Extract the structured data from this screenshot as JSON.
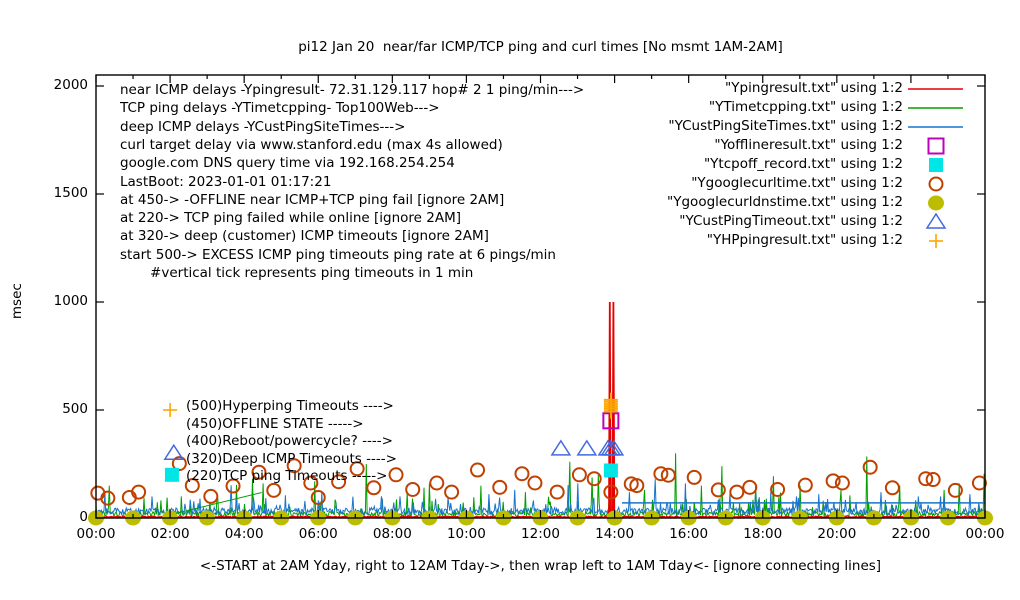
{
  "title": "pi12 Jan 20  near/far ICMP/TCP ping and curl times [No msmt 1AM-2AM]",
  "ylabel": "msec",
  "xlabel_note": "<-START at 2AM Yday, right to 12AM Tday->, then wrap left to 1AM Tday<- [ignore connecting lines]",
  "annotations_topleft": [
    "near ICMP delays -Ypingresult- 72.31.129.117 hop# 2 1 ping/min--->",
    "TCP ping delays -YTimetcpping- Top100Web--->",
    "deep ICMP delays -YCustPingSiteTimes--->",
    "curl target delay via www.stanford.edu (max 4s allowed)",
    "google.com DNS query time via 192.168.254.254",
    "LastBoot: 2023-01-01 01:17:21",
    "at 450-> -OFFLINE near ICMP+TCP ping fail [ignore 2AM]",
    "at 220-> TCP ping failed while online [ignore 2AM]",
    "at 320-> deep (customer) ICMP timeouts [ignore 2AM]",
    "start 500-> EXCESS ICMP ping timeouts ping rate at 6 pings/min",
    "       #vertical tick represents ping timeouts in 1 min"
  ],
  "annotations_mid": [
    {
      "label": "(500)Hyperping Timeouts ---->",
      "marker": "plus",
      "marker_color": "#ffa500",
      "mx": 2.0,
      "my": 500
    },
    {
      "label": "(450)OFFLINE STATE ----->",
      "marker": null,
      "marker_color": null,
      "mx": null,
      "my": null
    },
    {
      "label": "(400)Reboot/powercycle? ---->",
      "marker": null,
      "marker_color": null,
      "mx": null,
      "my": null
    },
    {
      "label": "(320)Deep ICMP Timeouts ---->",
      "marker": "triangle-open",
      "marker_color": "#4169e1",
      "mx": 2.1,
      "my": 300
    },
    {
      "label": "(220)TCP ping Timeouts ----->",
      "marker": "square-fill",
      "marker_color": "#00e5e5",
      "mx": 2.05,
      "my": 200
    }
  ],
  "legend": [
    {
      "label": "\"Ypingresult.txt\" using 1:2",
      "sample": "line",
      "color": "#e60000"
    },
    {
      "label": "\"YTimetcpping.txt\" using 1:2",
      "sample": "line",
      "color": "#00a000"
    },
    {
      "label": "\"YCustPingSiteTimes.txt\" using 1:2",
      "sample": "line",
      "color": "#1874cd"
    },
    {
      "label": "\"Yofflineresult.txt\" using 1:2",
      "sample": "square-open",
      "color": "#bf00bf"
    },
    {
      "label": "\"Ytcpoff_record.txt\" using 1:2",
      "sample": "square-fill",
      "color": "#00e5e5"
    },
    {
      "label": "\"Ygooglecurltime.txt\" using 1:2",
      "sample": "circle-open",
      "color": "#c04000"
    },
    {
      "label": "\"Ygooglecurldnstime.txt\" using 1:2",
      "sample": "circle-fill",
      "color": "#bdbd00"
    },
    {
      "label": "\"YCustPingTimeout.txt\" using 1:2",
      "sample": "triangle-open",
      "color": "#4169e1"
    },
    {
      "label": "\"YHPpingresult.txt\" using 1:2",
      "sample": "plus",
      "color": "#ffa500"
    }
  ],
  "chart_data": {
    "type": "line",
    "title": "pi12 Jan 20  near/far ICMP/TCP ping and curl times [No msmt 1AM-2AM]",
    "xlabel": "<-START at 2AM Yday, right to 12AM Tday->, then wrap left to 1AM Tday<- [ignore connecting lines]",
    "ylabel": "msec",
    "xlim": [
      0,
      24
    ],
    "ylim": [
      0,
      2000
    ],
    "grid": false,
    "legend_position": "top-right-outside-style",
    "x_ticks": {
      "positions": [
        0,
        2,
        4,
        6,
        8,
        10,
        12,
        14,
        16,
        18,
        20,
        22,
        24
      ],
      "labels": [
        "00:00",
        "02:00",
        "04:00",
        "06:00",
        "08:00",
        "10:00",
        "12:00",
        "14:00",
        "16:00",
        "18:00",
        "20:00",
        "22:00",
        "00:00"
      ]
    },
    "y_ticks": {
      "positions": [
        0,
        500,
        1000,
        1500,
        2000
      ],
      "labels": [
        "0",
        "500",
        "1000",
        "1500",
        "2000"
      ]
    },
    "series": [
      {
        "name": "YTimetcpping.txt",
        "type": "noise-line",
        "color": "#00a000",
        "base": 6,
        "jitter": 24,
        "spike_p": 0.1,
        "spike_amp": 75,
        "rare_p": 0.006,
        "rare_amp": 150,
        "seed": 42,
        "spikes": [
          [
            0.35,
            150
          ],
          [
            1.3,
            95
          ],
          [
            2.3,
            100
          ],
          [
            3.3,
            90
          ],
          [
            4.5,
            160
          ],
          [
            5.9,
            170
          ],
          [
            7.3,
            250
          ],
          [
            8.4,
            120
          ],
          [
            9.0,
            160
          ],
          [
            10.4,
            150
          ],
          [
            11.6,
            120
          ],
          [
            12.8,
            260
          ],
          [
            13.55,
            200
          ],
          [
            14.8,
            130
          ],
          [
            15.65,
            300
          ],
          [
            16.35,
            150
          ],
          [
            16.9,
            240
          ],
          [
            17.8,
            150
          ],
          [
            19.0,
            150
          ],
          [
            20.1,
            130
          ],
          [
            20.8,
            285
          ],
          [
            21.7,
            150
          ],
          [
            22.9,
            130
          ],
          [
            23.3,
            160
          ],
          [
            23.97,
            205
          ]
        ]
      },
      {
        "name": "YCustPingSiteTimes.txt",
        "type": "noise-line",
        "color": "#1874cd",
        "base": 16,
        "jitter": 30,
        "spike_p": 0.1,
        "spike_amp": 55,
        "rare_p": 0.004,
        "rare_amp": 90,
        "seed": 1337,
        "spikes": [
          [
            0.25,
            120
          ],
          [
            1.5,
            100
          ],
          [
            2.8,
            90
          ],
          [
            3.8,
            95
          ],
          [
            5.1,
            105
          ],
          [
            6.1,
            120
          ],
          [
            7.7,
            100
          ],
          [
            8.2,
            100
          ],
          [
            9.5,
            95
          ],
          [
            10.6,
            110
          ],
          [
            11.3,
            130
          ],
          [
            13.0,
            160
          ],
          [
            14.4,
            120
          ],
          [
            15.1,
            180
          ],
          [
            15.9,
            160
          ],
          [
            17.1,
            110
          ],
          [
            17.8,
            120
          ],
          [
            18.9,
            100
          ],
          [
            19.5,
            110
          ],
          [
            21.2,
            120
          ],
          [
            22.2,
            100
          ],
          [
            22.8,
            100
          ],
          [
            23.6,
            110
          ]
        ]
      },
      {
        "name": "Ypingresult.txt",
        "type": "noise-line",
        "color": "#e60000",
        "base": 2,
        "jitter": 5,
        "spike_p": 0,
        "spike_amp": 0,
        "rare_p": 0,
        "rare_amp": 0,
        "seed": 7,
        "spikes": [
          [
            13.87,
            1000
          ],
          [
            13.97,
            1000
          ]
        ]
      },
      {
        "name": "Ygooglecurltime.txt",
        "type": "points",
        "marker": "circle-open",
        "color": "#c04000",
        "points": [
          [
            0.05,
            115
          ],
          [
            0.32,
            92
          ],
          [
            0.9,
            95
          ],
          [
            1.15,
            120
          ],
          [
            2.25,
            252
          ],
          [
            2.6,
            150
          ],
          [
            3.1,
            100
          ],
          [
            3.7,
            148
          ],
          [
            4.4,
            212
          ],
          [
            4.8,
            128
          ],
          [
            5.35,
            242
          ],
          [
            5.8,
            162
          ],
          [
            6.0,
            95
          ],
          [
            6.55,
            168
          ],
          [
            7.05,
            228
          ],
          [
            7.5,
            140
          ],
          [
            8.1,
            200
          ],
          [
            8.55,
            132
          ],
          [
            9.2,
            162
          ],
          [
            9.6,
            120
          ],
          [
            10.3,
            222
          ],
          [
            10.9,
            142
          ],
          [
            11.5,
            205
          ],
          [
            11.85,
            162
          ],
          [
            12.45,
            120
          ],
          [
            13.05,
            200
          ],
          [
            13.45,
            182
          ],
          [
            13.9,
            120
          ],
          [
            14.45,
            158
          ],
          [
            14.6,
            150
          ],
          [
            15.25,
            205
          ],
          [
            15.45,
            198
          ],
          [
            16.15,
            188
          ],
          [
            16.8,
            130
          ],
          [
            17.3,
            120
          ],
          [
            17.65,
            142
          ],
          [
            18.4,
            132
          ],
          [
            19.15,
            152
          ],
          [
            19.9,
            172
          ],
          [
            20.15,
            162
          ],
          [
            20.9,
            235
          ],
          [
            21.5,
            140
          ],
          [
            22.4,
            182
          ],
          [
            22.6,
            178
          ],
          [
            23.2,
            128
          ],
          [
            23.85,
            162
          ]
        ]
      },
      {
        "name": "Ygooglecurldnstime.txt",
        "type": "points",
        "marker": "circle-fill",
        "color": "#bdbd00",
        "points": [
          [
            0,
            0
          ],
          [
            1,
            0
          ],
          [
            2,
            0
          ],
          [
            3,
            0
          ],
          [
            4,
            0
          ],
          [
            5,
            0
          ],
          [
            6,
            0
          ],
          [
            7,
            0
          ],
          [
            8,
            0
          ],
          [
            9,
            0
          ],
          [
            10,
            0
          ],
          [
            11,
            0
          ],
          [
            12,
            0
          ],
          [
            13,
            0
          ],
          [
            14,
            0
          ],
          [
            15,
            0
          ],
          [
            16,
            0
          ],
          [
            17,
            0
          ],
          [
            18,
            0
          ],
          [
            19,
            0
          ],
          [
            20,
            0
          ],
          [
            21,
            0
          ],
          [
            22,
            0
          ],
          [
            23,
            0
          ],
          [
            24,
            0
          ]
        ]
      },
      {
        "name": "Yofflineresult.txt",
        "type": "points",
        "marker": "square-open",
        "color": "#bf00bf",
        "points": [
          [
            13.9,
            450
          ]
        ]
      },
      {
        "name": "Ytcpoff_record.txt",
        "type": "points",
        "marker": "square-fill",
        "color": "#00e5e5",
        "points": [
          [
            13.9,
            220
          ]
        ]
      },
      {
        "name": "YCustPingTimeout.txt",
        "type": "points",
        "marker": "triangle-open",
        "color": "#4169e1",
        "points": [
          [
            12.55,
            320
          ],
          [
            13.25,
            320
          ],
          [
            13.82,
            320
          ],
          [
            13.9,
            320
          ],
          [
            13.98,
            320
          ]
        ]
      },
      {
        "name": "YHPpingresult.txt",
        "type": "points",
        "marker": "plus",
        "color": "#ffa500",
        "points": [
          [
            13.9,
            492
          ],
          [
            13.9,
            500
          ],
          [
            13.9,
            508
          ],
          [
            13.9,
            516
          ],
          [
            13.9,
            524
          ],
          [
            13.9,
            532
          ],
          [
            13.9,
            540
          ],
          [
            13.9,
            548
          ]
        ]
      }
    ],
    "extra_segments": [
      {
        "color": "#00a000",
        "width": 1,
        "points": [
          [
            2.08,
            18
          ],
          [
            4.47,
            118
          ]
        ]
      },
      {
        "color": "#1874cd",
        "width": 1.5,
        "points": [
          [
            14.2,
            70
          ],
          [
            24,
            70
          ]
        ]
      }
    ]
  }
}
